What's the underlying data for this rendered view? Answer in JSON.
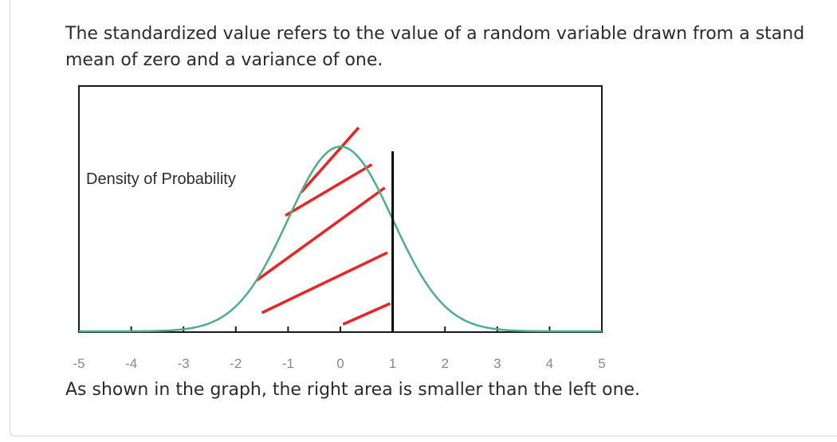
{
  "text": {
    "intro_line1": "The standardized value refers to the value of a random variable drawn from a stand",
    "intro_line2": "mean of zero and a variance of one.",
    "conclusion": "As shown in the graph, the right area is smaller than the left one."
  },
  "chart_data": {
    "type": "line",
    "ylabel": "Density of Probability",
    "xlim": [
      -5,
      5
    ],
    "ylim": [
      0,
      0.44
    ],
    "x_ticks": [
      -5,
      -4,
      -3,
      -2,
      -1,
      0,
      1,
      2,
      3,
      4,
      5
    ],
    "x_tick_labels": [
      "-5",
      "-4",
      "-3",
      "-2",
      "-1",
      "0",
      "1",
      "2",
      "3",
      "4",
      "5"
    ],
    "series": [
      {
        "x": [
          -5,
          -4,
          -3,
          -2.5,
          -2,
          -1.5,
          -1,
          -0.5,
          0,
          0.5,
          1,
          1.5,
          2,
          2.5,
          3,
          4,
          5
        ],
        "y": [
          0.0,
          0.0001,
          0.004,
          0.018,
          0.054,
          0.13,
          0.242,
          0.352,
          0.399,
          0.352,
          0.242,
          0.13,
          0.054,
          0.018,
          0.004,
          0.0001,
          0.0
        ],
        "color": "#4caf8c"
      }
    ],
    "vertical_line": {
      "x": 1,
      "color": "#000000"
    },
    "shaded_region": {
      "x_from": -1.6,
      "x_to": 1,
      "style": "red diagonal hatch",
      "color": "#ee2222"
    }
  }
}
